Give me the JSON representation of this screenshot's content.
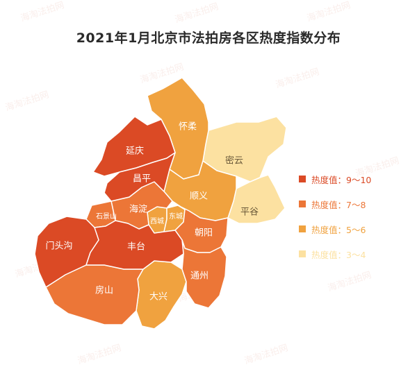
{
  "title": "2021年1月北京市法拍房各区热度指数分布",
  "colors": {
    "level_9_10": "#db4a25",
    "level_7_8": "#ec7637",
    "level_5_6": "#f0a23f",
    "level_3_4": "#fce1a1"
  },
  "districts": {
    "yanqing": "延庆",
    "huairou": "怀柔",
    "miyun": "密云",
    "changping": "昌平",
    "shunyi": "顺义",
    "pinggu": "平谷",
    "haidian": "海淀",
    "shijingshan": "石景山",
    "xicheng": "西城",
    "dongcheng": "东城",
    "chaoyang": "朝阳",
    "mentougou": "门头沟",
    "fengtai": "丰台",
    "fangshan": "房山",
    "tongzhou": "通州",
    "daxing": "大兴"
  },
  "legend": [
    {
      "label": "热度值：9～10",
      "color": "#db4a25"
    },
    {
      "label": "热度值：7～8",
      "color": "#ec7637"
    },
    {
      "label": "热度值：5～6",
      "color": "#f0a23f"
    },
    {
      "label": "热度值：3～4",
      "color": "#fce1a1"
    }
  ],
  "watermark": "海淘法拍网"
}
